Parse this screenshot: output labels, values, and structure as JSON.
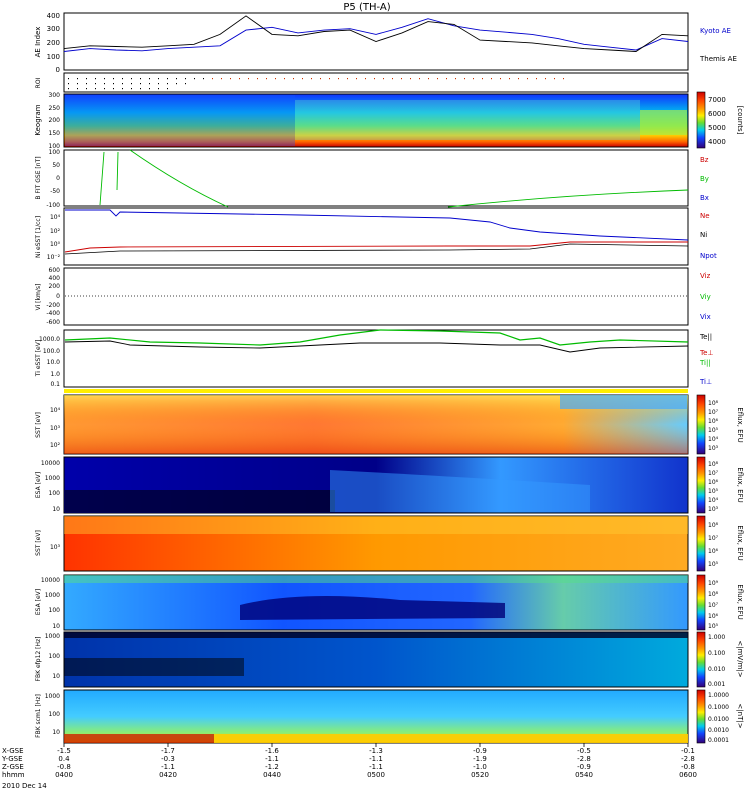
{
  "chart_data": {
    "type": "line",
    "title": "P5 (TH-A)",
    "date_label": "2010 Dec 14",
    "colors": {
      "black": "#000000",
      "blue": "#0000cc",
      "red": "#cc0000",
      "green": "#00bb00",
      "orange_red": "#ff3300"
    },
    "time_axis": {
      "hhmm": [
        "0400",
        "0420",
        "0440",
        "0500",
        "0520",
        "0540",
        "0600"
      ],
      "rows": [
        {
          "label": "X-GSE",
          "values": [
            "-1.5",
            "-1.7",
            "-1.6",
            "-1.3",
            "-0.9",
            "-0.5",
            "-0.1"
          ]
        },
        {
          "label": "Y-GSE",
          "values": [
            "0.4",
            "-0.3",
            "-1.1",
            "-1.1",
            "-1.9",
            "-2.8",
            "-2.8"
          ]
        },
        {
          "label": "Z-GSE",
          "values": [
            "-0.8",
            "-1.1",
            "-1.2",
            "-1.1",
            "-1.0",
            "-0.9",
            "-0.8"
          ]
        },
        {
          "label": "hhmm",
          "values": []
        }
      ]
    },
    "panels": [
      {
        "id": "ae",
        "ylabel": "AE Index",
        "yticks": [
          "400",
          "300",
          "200",
          "100",
          "0"
        ],
        "legend": [
          {
            "name": "Kyoto AE",
            "color": "#0000cc"
          },
          {
            "name": "Themis AE",
            "color": "#000000"
          }
        ],
        "series": [
          {
            "name": "Kyoto AE",
            "color": "#0000cc",
            "x": [
              0,
              5,
              10,
              15,
              20,
              25,
              30,
              35,
              40,
              45,
              50,
              55,
              60,
              65,
              70,
              75,
              80,
              85,
              90,
              95,
              100,
              105,
              110,
              115,
              120
            ],
            "y": [
              130,
              150,
              140,
              135,
              150,
              160,
              170,
              280,
              300,
              260,
              280,
              290,
              250,
              300,
              360,
              310,
              280,
              265,
              250,
              220,
              180,
              160,
              140,
              220,
              200
            ]
          },
          {
            "name": "Themis AE",
            "color": "#000000",
            "x": [
              0,
              5,
              10,
              15,
              20,
              25,
              30,
              35,
              40,
              45,
              50,
              55,
              60,
              65,
              70,
              75,
              80,
              85,
              90,
              95,
              100,
              105,
              110,
              115,
              120
            ],
            "y": [
              150,
              170,
              165,
              160,
              170,
              180,
              250,
              380,
              250,
              240,
              270,
              280,
              200,
              260,
              340,
              320,
              210,
              200,
              190,
              170,
              150,
              140,
              130,
              250,
              240
            ]
          }
        ]
      },
      {
        "id": "roi",
        "ylabel": "ROI"
      },
      {
        "id": "keogram",
        "ylabel": "Keogram",
        "yticks": [
          "300",
          "250",
          "200",
          "150",
          "100"
        ],
        "colorbar": {
          "label": "[counts]",
          "ticks": [
            "7000",
            "6000",
            "5000",
            "4000"
          ]
        }
      },
      {
        "id": "bfit",
        "ylabel": "B FIT GSE [nT]",
        "yticks": [
          "100",
          "50",
          "0",
          "-50",
          "-100"
        ],
        "legend": [
          {
            "name": "Bz",
            "color": "#cc0000"
          },
          {
            "name": "By",
            "color": "#00bb00"
          },
          {
            "name": "Bx",
            "color": "#0000cc"
          }
        ]
      },
      {
        "id": "density",
        "ylabel": "Ni eSST [1/cc]",
        "yticks": [
          "10⁴",
          "10²",
          "10⁰",
          "10⁻²"
        ],
        "legend": [
          {
            "name": "Ne",
            "color": "#cc0000"
          },
          {
            "name": "Ni",
            "color": "#000000"
          },
          {
            "name": "Npot",
            "color": "#0000cc"
          }
        ]
      },
      {
        "id": "velocity",
        "ylabel": "Vi [km/s]",
        "yticks": [
          "600",
          "400",
          "200",
          "0",
          "-200",
          "-400",
          "-600"
        ],
        "legend": [
          {
            "name": "Viz",
            "color": "#cc0000"
          },
          {
            "name": "Viy",
            "color": "#00bb00"
          },
          {
            "name": "Vix",
            "color": "#0000cc"
          }
        ]
      },
      {
        "id": "temperature",
        "ylabel": "Ti eSST [eV]",
        "yticks": [
          "1000.0",
          "100.0",
          "10.0",
          "1.0",
          "0.1"
        ],
        "legend": [
          {
            "name": "Te||",
            "color": "#000000"
          },
          {
            "name": "Te⊥",
            "color": "#cc0000"
          },
          {
            "name": "Ti||",
            "color": "#00bb00"
          },
          {
            "name": "Ti⊥",
            "color": "#0000cc"
          }
        ]
      },
      {
        "id": "sst_i",
        "ylabel": "SST [eV]",
        "yticks": [
          "10⁴",
          "10³",
          "10²"
        ],
        "colorbar": {
          "label": "Eflux, EFU",
          "ticks": [
            "10⁸",
            "10⁷",
            "10⁶",
            "10⁵",
            "10⁴",
            "10³"
          ]
        }
      },
      {
        "id": "esa_i",
        "ylabel": "ESA [eV]",
        "yticks": [
          "10000",
          "1000",
          "100",
          "10"
        ],
        "colorbar": {
          "label": "Eflux, EFU",
          "ticks": [
            "10⁸",
            "10⁷",
            "10⁶",
            "10⁵",
            "10⁴",
            "10³"
          ]
        }
      },
      {
        "id": "sst_e",
        "ylabel": "SST [eV]",
        "yticks": [
          "10³"
        ],
        "colorbar": {
          "label": "Eflux, EFU",
          "ticks": [
            "10⁸",
            "10⁷",
            "10⁶",
            "10⁵"
          ]
        }
      },
      {
        "id": "esa_e",
        "ylabel": "ESA [eV]",
        "yticks": [
          "10000",
          "1000",
          "100",
          "10"
        ],
        "colorbar": {
          "label": "Eflux, EFU",
          "ticks": [
            "10⁹",
            "10⁸",
            "10⁷",
            "10⁶",
            "10⁵"
          ]
        }
      },
      {
        "id": "fbk_e",
        "ylabel": "FBK efp12 [Hz]",
        "yticks": [
          "1000",
          "100",
          "10"
        ],
        "colorbar": {
          "label": "<|mV/m|>",
          "ticks": [
            "1.000",
            "0.100",
            "0.010",
            "0.001"
          ]
        }
      },
      {
        "id": "fbk_b",
        "ylabel": "FBK scm1 [Hz]",
        "yticks": [
          "1000",
          "100",
          "10"
        ],
        "colorbar": {
          "label": "<|nT|>",
          "ticks": [
            "1.0000",
            "0.1000",
            "0.0100",
            "0.0010",
            "0.0001"
          ]
        }
      }
    ]
  }
}
